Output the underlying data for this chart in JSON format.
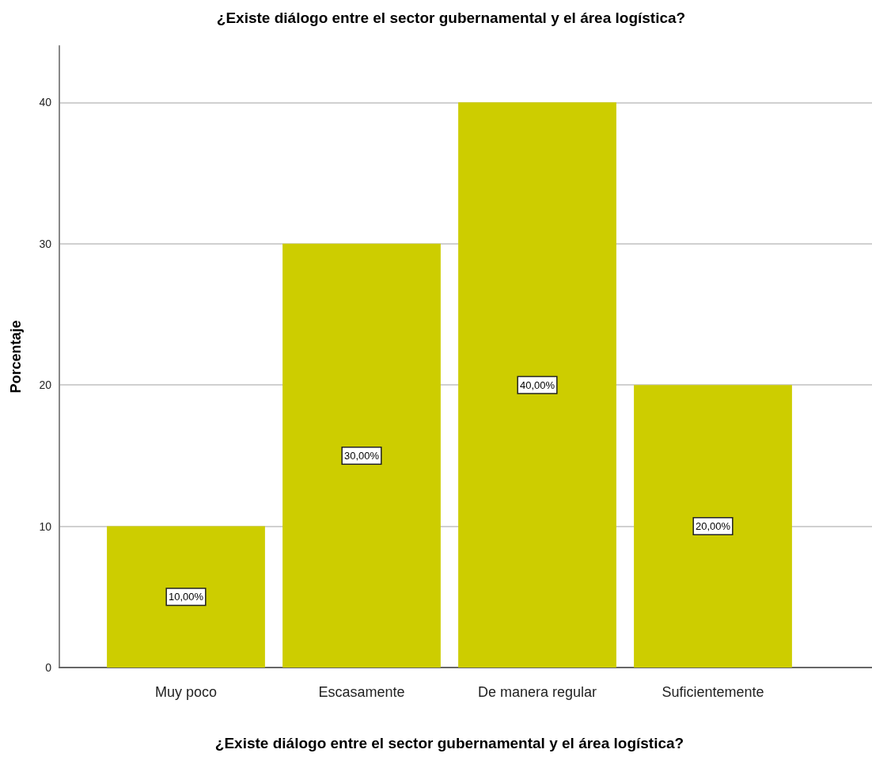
{
  "chart_data": {
    "type": "bar",
    "title": "¿Existe diálogo entre el sector gubernamental y el área logística?",
    "xlabel": "¿Existe diálogo entre el sector gubernamental y el área logística?",
    "ylabel": "Porcentaje",
    "categories": [
      "Muy poco",
      "Escasamente",
      "De manera regular",
      "Suficientemente"
    ],
    "values": [
      10,
      30,
      40,
      20
    ],
    "value_labels": [
      "10,00%",
      "30,00%",
      "40,00%",
      "20,00%"
    ],
    "color": "#cdcd00",
    "ylim": [
      0,
      44
    ],
    "yticks": [
      0,
      10,
      20,
      30,
      40
    ],
    "grid": "y"
  }
}
